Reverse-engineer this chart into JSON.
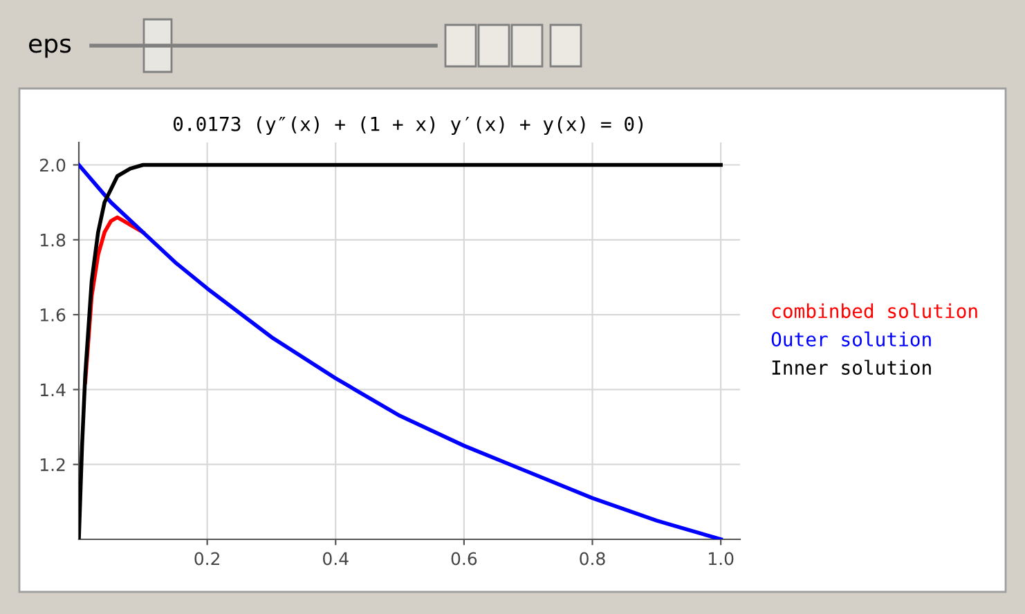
{
  "chart_data": {
    "type": "line",
    "title": "0.0173 (y″(x) + (1 + x) y′(x) + y(x) = 0)",
    "annotations": [
      "eps"
    ],
    "series": [
      {
        "name": "combinbed solution",
        "color": "#ff0000",
        "x": [
          0.01,
          0.02,
          0.03,
          0.04,
          0.05,
          0.06,
          0.07,
          0.08,
          0.1
        ],
        "values": [
          1.42,
          1.65,
          1.76,
          1.82,
          1.85,
          1.86,
          1.85,
          1.84,
          1.82
        ]
      },
      {
        "name": "Outer solution",
        "color": "#0000ff",
        "x": [
          0,
          0.05,
          0.1,
          0.15,
          0.2,
          0.3,
          0.4,
          0.5,
          0.6,
          0.7,
          0.8,
          0.9,
          1.0
        ],
        "values": [
          2.0,
          1.9,
          1.82,
          1.74,
          1.67,
          1.54,
          1.43,
          1.33,
          1.25,
          1.18,
          1.11,
          1.05,
          1.0
        ]
      },
      {
        "name": "Inner solution",
        "color": "#000000",
        "x": [
          0,
          0.005,
          0.01,
          0.02,
          0.03,
          0.04,
          0.06,
          0.08,
          0.1,
          0.15,
          1.0
        ],
        "values": [
          1.0,
          1.25,
          1.44,
          1.69,
          1.82,
          1.9,
          1.97,
          1.99,
          2.0,
          2.0,
          2.0
        ]
      }
    ],
    "xlim": [
      0,
      1.03
    ],
    "ylim": [
      1.0,
      2.06
    ],
    "xticks": [
      0.2,
      0.4,
      0.6,
      0.8,
      {
        "value": 1.0,
        "label": "1.0"
      }
    ],
    "yticks": [
      1.2,
      1.4,
      1.6,
      1.8,
      {
        "value": 2.0,
        "label": "2.0"
      }
    ],
    "grid": true,
    "legend": "right",
    "marker": "none",
    "line_style": "solid"
  }
}
